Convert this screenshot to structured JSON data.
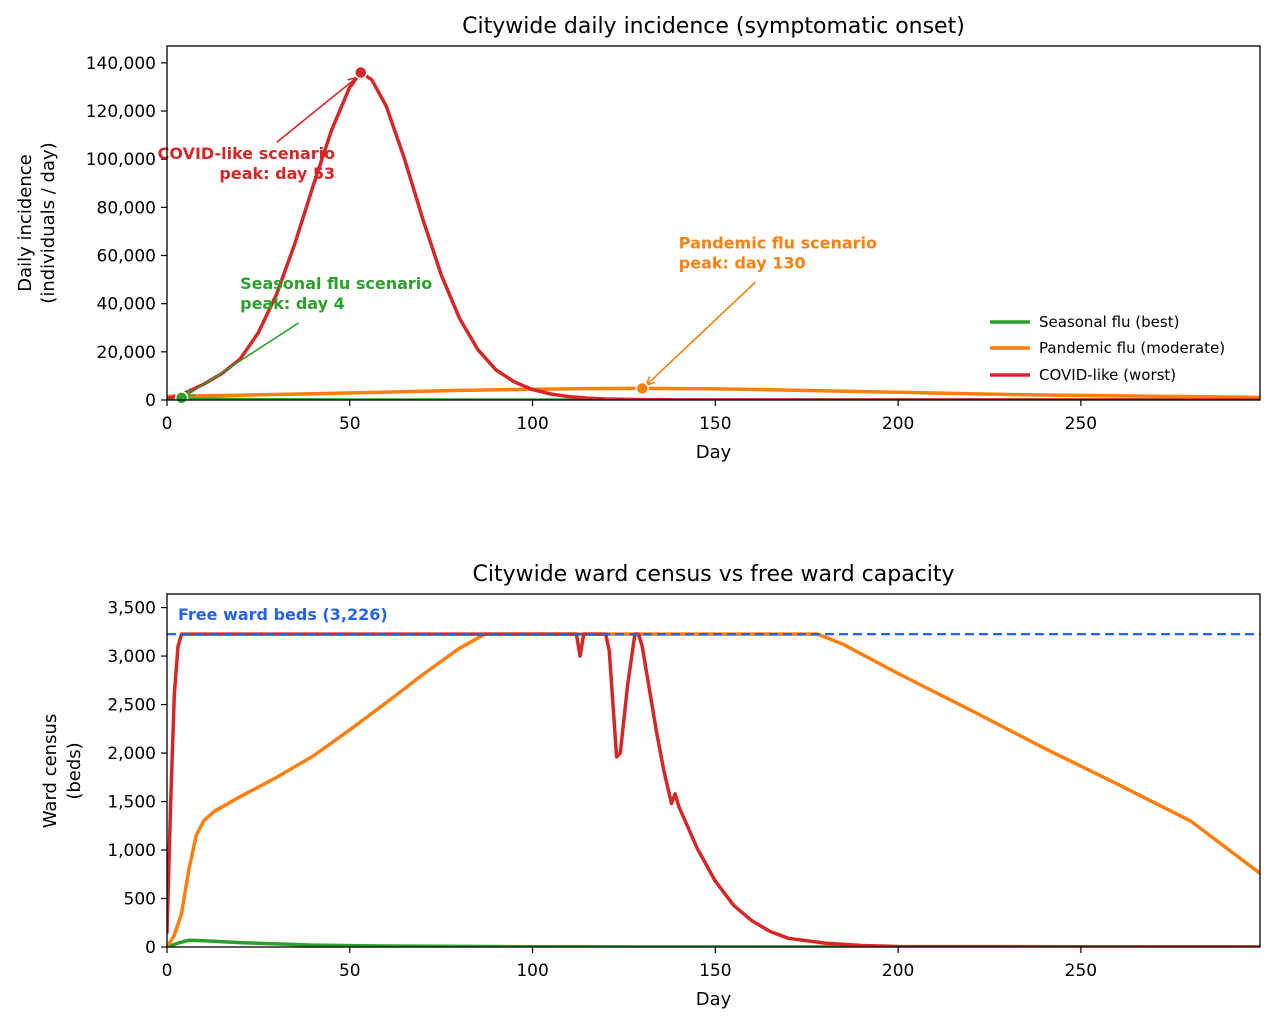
{
  "colors": {
    "seasonal": "#2ca02c",
    "pandemic": "#ff7f0e",
    "covid": "#d62728",
    "capacity": "#2563eb"
  },
  "chart_data": [
    {
      "type": "line",
      "title": "Citywide daily incidence (symptomatic onset)",
      "xlabel": "Day",
      "ylabel_lines": [
        "Daily incidence",
        "(individuals / day)"
      ],
      "xlim": [
        0,
        299
      ],
      "ylim": [
        0,
        147000
      ],
      "xticks": [
        0,
        50,
        100,
        150,
        200,
        250
      ],
      "xtick_labels": [
        "0",
        "50",
        "100",
        "150",
        "200",
        "250"
      ],
      "yticks": [
        0,
        20000,
        40000,
        60000,
        80000,
        100000,
        120000,
        140000
      ],
      "ytick_labels": [
        "0",
        "20,000",
        "40,000",
        "60,000",
        "80,000",
        "100,000",
        "120,000",
        "140,000"
      ],
      "legend": {
        "placement": "lower-right",
        "entries": [
          "Seasonal flu (best)",
          "Pandemic flu (moderate)",
          "COVID-like (worst)"
        ]
      },
      "series": [
        {
          "name": "Seasonal flu (best)",
          "color_key": "seasonal",
          "points": [
            [
              0,
              200
            ],
            [
              2,
              550
            ],
            [
              4,
              900
            ],
            [
              6,
              780
            ],
            [
              10,
              550
            ],
            [
              15,
              330
            ],
            [
              20,
              190
            ],
            [
              30,
              80
            ],
            [
              50,
              20
            ],
            [
              100,
              0
            ],
            [
              299,
              0
            ]
          ]
        },
        {
          "name": "Pandemic flu (moderate)",
          "color_key": "pandemic",
          "points": [
            [
              0,
              1500
            ],
            [
              20,
              2000
            ],
            [
              40,
              2600
            ],
            [
              60,
              3300
            ],
            [
              80,
              4000
            ],
            [
              100,
              4500
            ],
            [
              115,
              4750
            ],
            [
              130,
              4800
            ],
            [
              150,
              4600
            ],
            [
              170,
              4100
            ],
            [
              200,
              3200
            ],
            [
              230,
              2300
            ],
            [
              260,
              1700
            ],
            [
              299,
              1100
            ]
          ]
        },
        {
          "name": "COVID-like (worst)",
          "color_key": "covid",
          "points": [
            [
              0,
              500
            ],
            [
              5,
              3000
            ],
            [
              10,
              6500
            ],
            [
              15,
              11000
            ],
            [
              20,
              17000
            ],
            [
              25,
              28000
            ],
            [
              30,
              44000
            ],
            [
              35,
              65000
            ],
            [
              40,
              89000
            ],
            [
              45,
              112000
            ],
            [
              50,
              130000
            ],
            [
              53,
              136000
            ],
            [
              56,
              133000
            ],
            [
              60,
              122000
            ],
            [
              65,
              100000
            ],
            [
              70,
              75000
            ],
            [
              75,
              52000
            ],
            [
              80,
              34000
            ],
            [
              85,
              21000
            ],
            [
              90,
              12500
            ],
            [
              95,
              7500
            ],
            [
              100,
              4300
            ],
            [
              105,
              2500
            ],
            [
              110,
              1400
            ],
            [
              115,
              800
            ],
            [
              120,
              400
            ],
            [
              130,
              150
            ],
            [
              140,
              60
            ],
            [
              160,
              10
            ],
            [
              180,
              0
            ],
            [
              299,
              0
            ]
          ]
        }
      ],
      "markers": [
        {
          "series_color_key": "covid",
          "x": 53,
          "y": 136000
        },
        {
          "series_color_key": "pandemic",
          "x": 130,
          "y": 4800
        },
        {
          "series_color_key": "seasonal",
          "x": 4,
          "y": 900
        }
      ],
      "annotations": [
        {
          "color_key": "covid",
          "lines": [
            "COVID-like scenario",
            "peak: day 53"
          ],
          "align": "end",
          "text_x": 46,
          "text_y": 100000,
          "arrow_from": [
            30,
            107000
          ],
          "arrow_to": [
            52,
            134000
          ]
        },
        {
          "color_key": "seasonal",
          "lines": [
            "Seasonal flu scenario",
            "peak: day 4"
          ],
          "align": "start",
          "text_x": 20,
          "text_y": 46000,
          "arrow_from": [
            36,
            32000
          ],
          "arrow_to": [
            5,
            1500
          ]
        },
        {
          "color_key": "pandemic",
          "lines": [
            "Pandemic flu scenario",
            "peak: day 130"
          ],
          "align": "start",
          "text_x": 140,
          "text_y": 63000,
          "arrow_from": [
            161,
            49000
          ],
          "arrow_to": [
            131,
            6000
          ]
        }
      ]
    },
    {
      "type": "line",
      "title": "Citywide ward census vs free ward capacity",
      "xlabel": "Day",
      "ylabel_lines": [
        "Ward census",
        "(beds)"
      ],
      "xlim": [
        0,
        299
      ],
      "ylim": [
        0,
        3640
      ],
      "xticks": [
        0,
        50,
        100,
        150,
        200,
        250
      ],
      "xtick_labels": [
        "0",
        "50",
        "100",
        "150",
        "200",
        "250"
      ],
      "yticks": [
        0,
        500,
        1000,
        1500,
        2000,
        2500,
        3000,
        3500
      ],
      "ytick_labels": [
        "0",
        "500",
        "1,000",
        "1,500",
        "2,000",
        "2,500",
        "3,000",
        "3,500"
      ],
      "capacity": {
        "value": 3226,
        "label": "Free ward beds (3,226)"
      },
      "series": [
        {
          "name": "Seasonal flu (best)",
          "color_key": "seasonal",
          "points": [
            [
              0,
              0
            ],
            [
              3,
              40
            ],
            [
              6,
              70
            ],
            [
              10,
              65
            ],
            [
              20,
              45
            ],
            [
              40,
              20
            ],
            [
              60,
              10
            ],
            [
              100,
              2
            ],
            [
              299,
              0
            ]
          ]
        },
        {
          "name": "Pandemic flu (moderate)",
          "color_key": "pandemic",
          "points": [
            [
              0,
              0
            ],
            [
              2,
              120
            ],
            [
              4,
              350
            ],
            [
              6,
              800
            ],
            [
              8,
              1150
            ],
            [
              10,
              1300
            ],
            [
              13,
              1400
            ],
            [
              20,
              1550
            ],
            [
              30,
              1750
            ],
            [
              40,
              1970
            ],
            [
              50,
              2240
            ],
            [
              60,
              2520
            ],
            [
              70,
              2810
            ],
            [
              80,
              3080
            ],
            [
              87,
              3226
            ],
            [
              178,
              3226
            ],
            [
              185,
              3120
            ],
            [
              200,
              2820
            ],
            [
              220,
              2440
            ],
            [
              240,
              2050
            ],
            [
              260,
              1680
            ],
            [
              280,
              1300
            ],
            [
              299,
              760
            ]
          ]
        },
        {
          "name": "COVID-like (worst)",
          "color_key": "covid",
          "points": [
            [
              0,
              150
            ],
            [
              1,
              1500
            ],
            [
              2,
              2600
            ],
            [
              3,
              3100
            ],
            [
              4,
              3226
            ],
            [
              112,
              3226
            ],
            [
              113,
              3000
            ],
            [
              114,
              3226
            ],
            [
              120,
              3226
            ],
            [
              121,
              3050
            ],
            [
              123,
              1960
            ],
            [
              124,
              2000
            ],
            [
              126,
              2700
            ],
            [
              128,
              3226
            ],
            [
              129,
              3226
            ],
            [
              130,
              3100
            ],
            [
              132,
              2650
            ],
            [
              134,
              2200
            ],
            [
              136,
              1800
            ],
            [
              138,
              1480
            ],
            [
              139,
              1580
            ],
            [
              140,
              1450
            ],
            [
              145,
              1020
            ],
            [
              150,
              680
            ],
            [
              155,
              430
            ],
            [
              160,
              270
            ],
            [
              165,
              160
            ],
            [
              170,
              90
            ],
            [
              180,
              40
            ],
            [
              190,
              15
            ],
            [
              200,
              5
            ],
            [
              299,
              0
            ]
          ]
        }
      ]
    }
  ]
}
